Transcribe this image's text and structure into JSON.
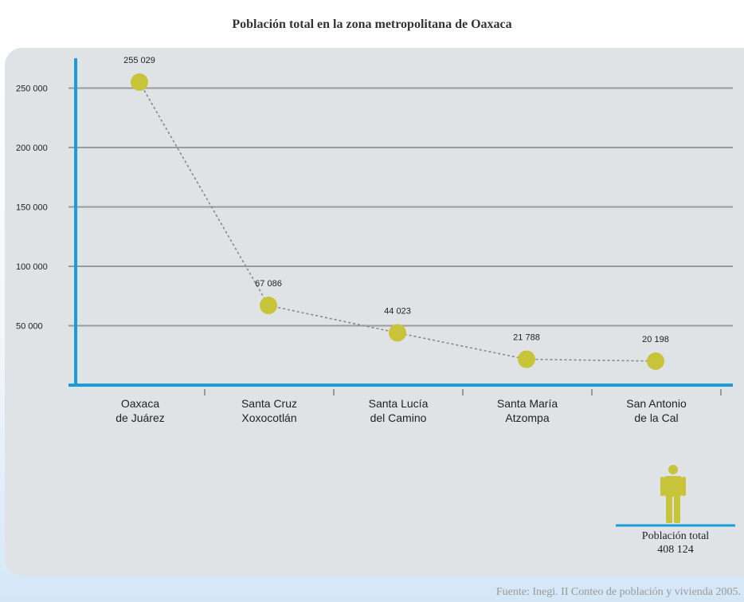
{
  "chart_data": {
    "type": "line",
    "title": "Población total en la zona metropolitana de Oaxaca",
    "categories": [
      [
        "Oaxaca",
        "de Juárez"
      ],
      [
        "Santa Cruz",
        "Xoxocotlán"
      ],
      [
        "Santa Lucía",
        "del Camino"
      ],
      [
        "Santa María",
        "Atzompa"
      ],
      [
        "San Antonio",
        "de la Cal"
      ]
    ],
    "values": [
      255029,
      67086,
      44023,
      21788,
      20198
    ],
    "value_labels": [
      "255 029",
      "67 086",
      "44 023",
      "21 788",
      "20 198"
    ],
    "y_ticks": [
      {
        "value": 50000,
        "label": "50 000"
      },
      {
        "value": 100000,
        "label": "100 000"
      },
      {
        "value": 150000,
        "label": "150 000"
      },
      {
        "value": 200000,
        "label": "200 000"
      },
      {
        "value": 250000,
        "label": "250 000"
      }
    ],
    "ylim": [
      0,
      270000
    ],
    "grid": true,
    "colors": {
      "axis": "#1a9cd8",
      "marker": "#c8c43a",
      "connector": "#888888",
      "grid": "#9a9a9a"
    }
  },
  "total": {
    "icon": "person-icon",
    "label": "Población total",
    "value": "408 124",
    "color": "#c8c43a",
    "line_color": "#1a9cd8"
  },
  "source": "Fuente: Inegi. II Conteo de población y vivienda 2005."
}
